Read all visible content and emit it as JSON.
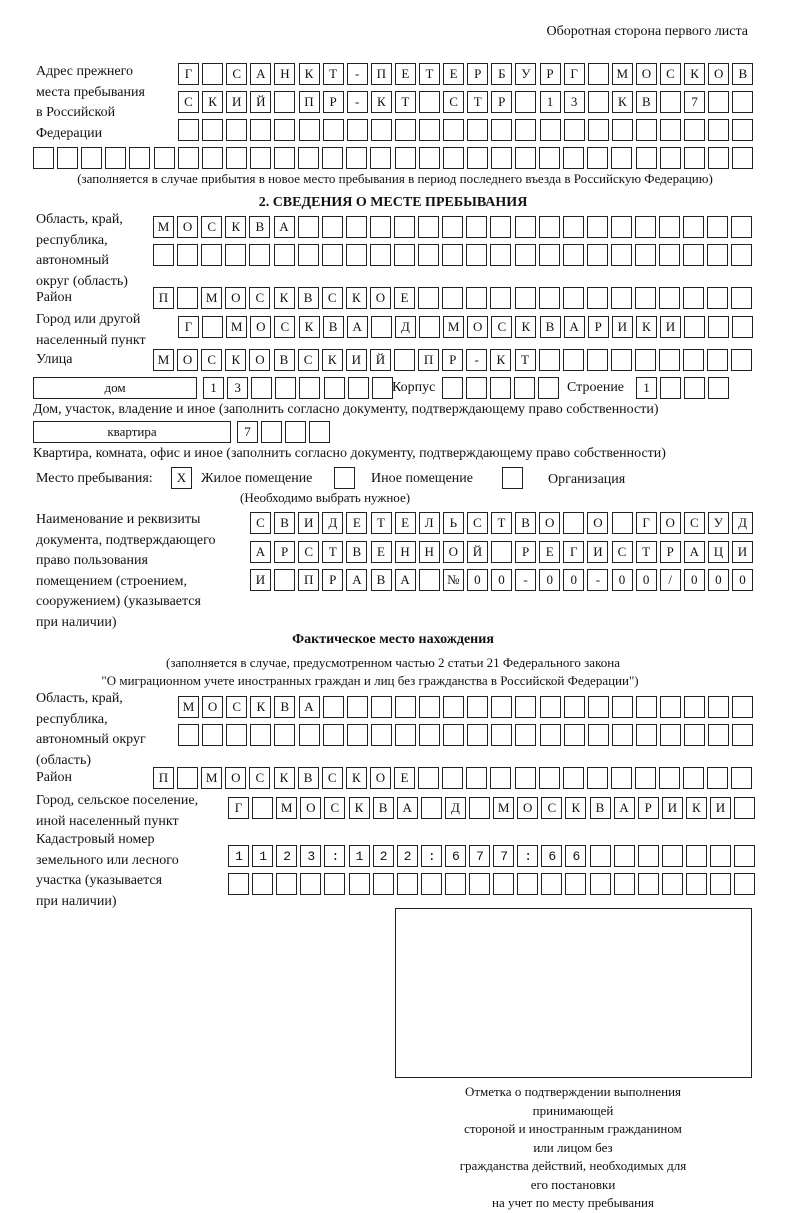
{
  "header": "Оборотная сторона первого листа",
  "previous_address": {
    "label": "Адрес прежнего\nместа пребывания\nв Российской\nФедерации",
    "rows": [
      "Г САНКТ-ПЕТЕРБУРГ МОСКОВ",
      "СКИЙ ПР-КТ СТР 13 КВ 7",
      "",
      ""
    ],
    "note": "(заполняется в случае прибытия в новое место пребывания в период последнего въезда в Российскую Федерацию)"
  },
  "section2": {
    "title": "2. СВЕДЕНИЯ О МЕСТЕ ПРЕБЫВАНИЯ",
    "region_label": "Область, край,\nреспублика,\nавтономный\nокруг (область)",
    "region_rows": [
      "МОСКВА",
      ""
    ],
    "district_label": "Район",
    "district": "П МОСКВСКОЕ",
    "city_label": "Город или другой\nнаселенный пункт",
    "city": "Г МОСКВА Д МОСКВАРИКИ",
    "street_label": "Улица",
    "street": "МОСКОВСКИЙ ПР-КТ",
    "house_type": "дом",
    "house_number": "13",
    "korpus_label": "Корпус",
    "korpus": "",
    "stroenie_label": "Строение",
    "stroenie": "1",
    "house_note": "Дом, участок, владение и иное (заполнить согласно документу, подтверждающему право собственности)",
    "apt_type": "квартира",
    "apt_number": "7",
    "apt_note": "Квартира, комната, офис и иное (заполнить согласно документу, подтверждающему право собственности)",
    "stay_label": "Место пребывания:",
    "stay_options": [
      {
        "label": "Жилое помещение",
        "mark": "Х",
        "checked": true
      },
      {
        "label": "Иное помещение",
        "mark": "",
        "checked": false
      },
      {
        "label": "Организация",
        "mark": "",
        "checked": false
      }
    ],
    "stay_note": "(Необходимо выбрать нужное)",
    "doc_label": "Наименование и реквизиты\nдокумента, подтверждающего\nправо пользования\nпомещением (строением,\nсооружением) (указывается\nпри наличии)",
    "doc_rows": [
      "СВИДЕТЕЛЬСТВО О ГОСУД",
      "АРСТВЕННОЙ РЕГИСТРАЦИ",
      "И ПРАВА №00-00-00/000"
    ]
  },
  "actual": {
    "title": "Фактическое место нахождения",
    "note1": "(заполняется в случае, предусмотренном частью 2 статьи 21 Федерального закона",
    "note2": "\"О миграционном учете иностранных граждан и лиц без гражданства в Российской Федерации\")",
    "region_label": "Область, край,\nреспублика,\nавтономный округ\n(область)",
    "region_rows": [
      "МОСКВА",
      ""
    ],
    "district_label": "Район",
    "district": "П МОСКВСКОЕ",
    "city_label": "Город, сельское поселение,\nиной населенный пункт",
    "city": "Г МОСКВА Д МОСКВАРИКИ",
    "cadastral_label": "Кадастровый номер\nземельного или лесного\nучастка (указывается\nпри наличии)",
    "cadastral_rows": [
      "1123:122:677:66",
      ""
    ]
  },
  "stamp_caption": "Отметка о подтверждении выполнения принимающей\nстороной и иностранным гражданином или лицом без\nгражданства действий, необходимых для его постановки\nна учет по месту пребывания"
}
